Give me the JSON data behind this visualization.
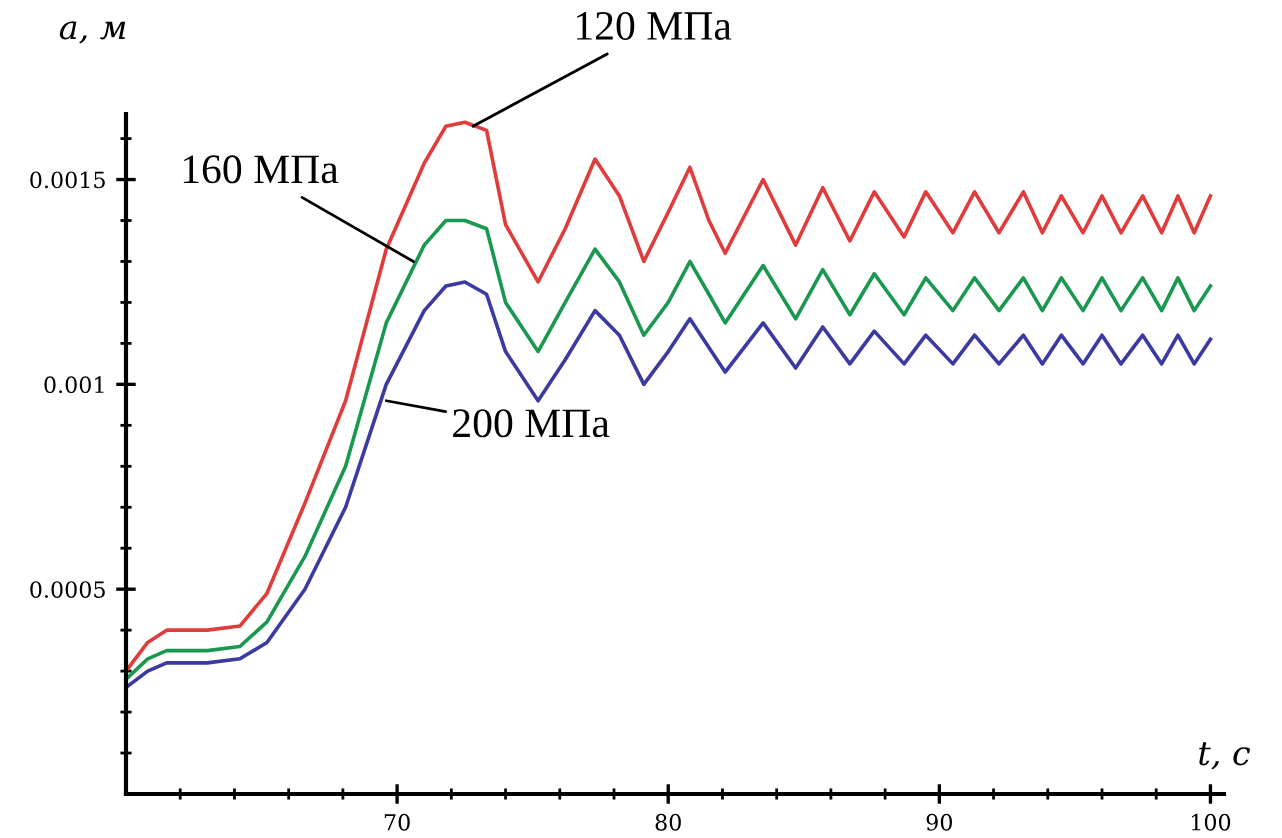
{
  "chart_data": {
    "type": "line",
    "xlabel": "t, c",
    "ylabel": "a, м",
    "x": [
      60,
      60.8,
      61.5,
      63,
      64.2,
      65.2,
      66.6,
      68.1,
      69.6,
      71,
      71.8,
      72.5,
      73.3,
      74,
      75.2,
      76.2,
      77.3,
      78.2,
      79.1,
      80,
      80.8,
      81.5,
      82.1,
      83.5,
      84.7,
      85.7,
      86.7,
      87.6,
      88.7,
      89.5,
      90.5,
      91.3,
      92.2,
      93.1,
      93.8,
      94.5,
      95.3,
      96,
      96.7,
      97.5,
      98.2,
      98.8,
      99.4,
      100
    ],
    "series": [
      {
        "color": "#e03c3c",
        "values": [
          0.0003,
          0.00037,
          0.0004,
          0.0004,
          0.00041,
          0.00049,
          0.00071,
          0.00096,
          0.00133,
          0.00154,
          0.00163,
          0.00164,
          0.00162,
          0.00139,
          0.00125,
          0.00138,
          0.00155,
          0.00146,
          0.0013,
          0.00142,
          0.00153,
          0.0014,
          0.00132,
          0.0015,
          0.00134,
          0.00148,
          0.00135,
          0.00147,
          0.00136,
          0.00147,
          0.00137,
          0.00147,
          0.00137,
          0.00147,
          0.00137,
          0.00146,
          0.00137,
          0.00146,
          0.00137,
          0.00146,
          0.00137,
          0.00146,
          0.00137,
          0.00146
        ]
      },
      {
        "color": "#1a9850",
        "values": [
          0.00028,
          0.00033,
          0.00035,
          0.00035,
          0.00036,
          0.00042,
          0.00058,
          0.0008,
          0.00115,
          0.00134,
          0.0014,
          0.0014,
          0.00138,
          0.0012,
          0.00108,
          0.0012,
          0.00133,
          0.00125,
          0.00112,
          0.0012,
          0.0013,
          0.00122,
          0.00115,
          0.00129,
          0.00116,
          0.00128,
          0.00117,
          0.00127,
          0.00117,
          0.00126,
          0.00118,
          0.00126,
          0.00118,
          0.00126,
          0.00118,
          0.00126,
          0.00118,
          0.00126,
          0.00118,
          0.00126,
          0.00118,
          0.00126,
          0.00118,
          0.00124
        ]
      },
      {
        "color": "#3a3aa0",
        "values": [
          0.00026,
          0.0003,
          0.00032,
          0.00032,
          0.00033,
          0.00037,
          0.0005,
          0.0007,
          0.001,
          0.00118,
          0.00124,
          0.00125,
          0.00122,
          0.00108,
          0.00096,
          0.00106,
          0.00118,
          0.00112,
          0.001,
          0.00108,
          0.00116,
          0.00109,
          0.00103,
          0.00115,
          0.00104,
          0.00114,
          0.00105,
          0.00113,
          0.00105,
          0.00112,
          0.00105,
          0.00112,
          0.00105,
          0.00112,
          0.00105,
          0.00112,
          0.00105,
          0.00112,
          0.00105,
          0.00112,
          0.00105,
          0.00112,
          0.00105,
          0.00111
        ]
      }
    ],
    "annotations": [
      {
        "text": "120 МПа",
        "x": 72.8,
        "y": 0.00163
      },
      {
        "text": "160 МПа",
        "x": 70.6,
        "y": 0.0013
      },
      {
        "text": "200 МПа",
        "x": 69.6,
        "y": 0.00096
      }
    ],
    "xlim": [
      60,
      100.5
    ],
    "ylim": [
      0,
      0.00166
    ],
    "xticks": [
      {
        "value": 62,
        "label": null
      },
      {
        "value": 64,
        "label": null
      },
      {
        "value": 66,
        "label": null
      },
      {
        "value": 68,
        "label": null
      },
      70,
      {
        "value": 72,
        "label": null
      },
      {
        "value": 74,
        "label": null
      },
      {
        "value": 76,
        "label": null
      },
      {
        "value": 78,
        "label": null
      },
      80,
      {
        "value": 82,
        "label": null
      },
      {
        "value": 84,
        "label": null
      },
      {
        "value": 86,
        "label": null
      },
      {
        "value": 88,
        "label": null
      },
      90,
      {
        "value": 92,
        "label": null
      },
      {
        "value": 94,
        "label": null
      },
      {
        "value": 96,
        "label": null
      },
      {
        "value": 98,
        "label": null
      },
      100
    ],
    "yticks": [
      {
        "value": 0.0001,
        "label": null
      },
      {
        "value": 0.0002,
        "label": null
      },
      {
        "value": 0.0003,
        "label": null
      },
      {
        "value": 0.0004,
        "label": null
      },
      0.0005,
      {
        "value": 0.0006,
        "label": null
      },
      {
        "value": 0.0007,
        "label": null
      },
      {
        "value": 0.0008,
        "label": null
      },
      {
        "value": 0.0009,
        "label": null
      },
      0.001,
      {
        "value": 0.0011,
        "label": null
      },
      {
        "value": 0.0012,
        "label": null
      },
      {
        "value": 0.0013,
        "label": null
      },
      {
        "value": 0.0014,
        "label": null
      },
      0.0015,
      {
        "value": 0.0016,
        "label": null
      }
    ],
    "grid": false,
    "legend": false
  }
}
